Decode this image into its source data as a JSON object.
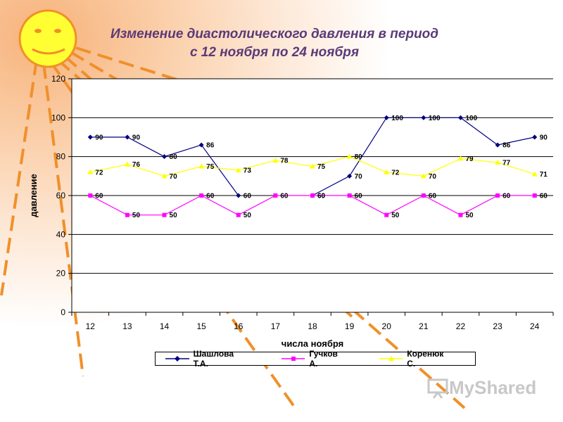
{
  "title_line1": "Изменение диастолического давления в период",
  "title_line2": "с 12 ноября по 24 ноября",
  "watermark": "MyShared",
  "chart_data": {
    "type": "line",
    "xlabel": "числа ноября",
    "ylabel": "давление",
    "ylim": [
      0,
      120
    ],
    "yticks": [
      0,
      20,
      40,
      60,
      80,
      100,
      120
    ],
    "grid": true,
    "legend_position": "bottom",
    "categories": [
      "12",
      "13",
      "14",
      "15",
      "16",
      "17",
      "18",
      "19",
      "20",
      "21",
      "22",
      "23",
      "24"
    ],
    "series": [
      {
        "name": "Шашлова Т.А.",
        "color": "#000080",
        "marker": "diamond",
        "values": [
          90,
          90,
          80,
          86,
          60,
          null,
          60,
          70,
          100,
          100,
          100,
          86,
          90
        ]
      },
      {
        "name": "Гучков А.",
        "color": "#ff00ff",
        "marker": "square",
        "values": [
          60,
          50,
          50,
          60,
          50,
          60,
          60,
          60,
          50,
          60,
          50,
          60,
          60
        ]
      },
      {
        "name": "Коренюк С.",
        "color": "#ffff00",
        "marker": "triangle",
        "values": [
          72,
          76,
          70,
          75,
          73,
          78,
          75,
          80,
          72,
          70,
          79,
          77,
          71
        ]
      }
    ]
  }
}
